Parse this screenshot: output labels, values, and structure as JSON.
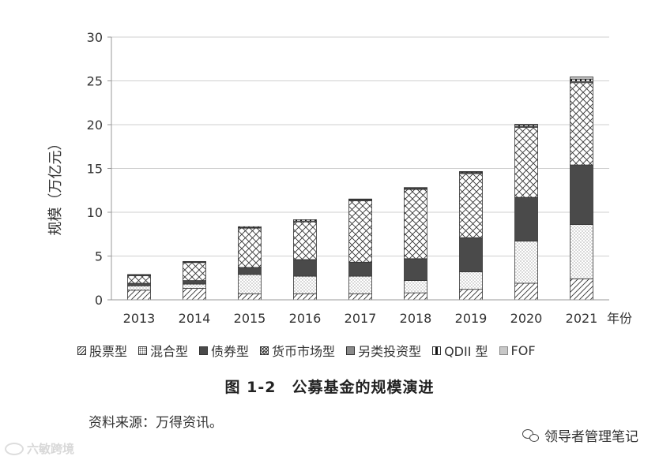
{
  "chart_data": {
    "type": "bar",
    "stacked": true,
    "title": "图 1-2　公募基金的规模演进",
    "ylabel": "规模（万亿元）",
    "xlabel": "年份",
    "ylim": [
      0,
      30
    ],
    "yticks": [
      0,
      5,
      10,
      15,
      20,
      25,
      30
    ],
    "grid": true,
    "legend_position": "bottom",
    "categories": [
      "2013",
      "2014",
      "2015",
      "2016",
      "2017",
      "2018",
      "2019",
      "2020",
      "2021"
    ],
    "series": [
      {
        "name": "股票型",
        "pattern": "hatch-diagonal",
        "values": [
          1.1,
          1.3,
          0.7,
          0.7,
          0.7,
          0.8,
          1.2,
          1.9,
          2.4
        ]
      },
      {
        "name": "混合型",
        "pattern": "dots",
        "values": [
          0.5,
          0.5,
          2.2,
          2.0,
          2.0,
          1.4,
          2.0,
          4.8,
          6.2
        ]
      },
      {
        "name": "债券型",
        "pattern": "solid-dark",
        "values": [
          0.3,
          0.4,
          0.8,
          1.9,
          1.6,
          2.5,
          3.9,
          5.0,
          6.8
        ]
      },
      {
        "name": "货币市场型",
        "pattern": "crosshatch",
        "values": [
          0.9,
          2.1,
          4.5,
          4.3,
          7.0,
          7.9,
          7.3,
          8.0,
          9.4
        ]
      },
      {
        "name": "另类投资型",
        "pattern": "solid-mid",
        "values": [
          0.02,
          0.02,
          0.05,
          0.1,
          0.1,
          0.1,
          0.1,
          0.1,
          0.15
        ]
      },
      {
        "name": "QDII 型",
        "pattern": "vertical-bar",
        "values": [
          0.07,
          0.06,
          0.1,
          0.15,
          0.1,
          0.1,
          0.1,
          0.15,
          0.25
        ]
      },
      {
        "name": "FOF",
        "pattern": "solid-light",
        "values": [
          0,
          0,
          0,
          0,
          0.01,
          0.02,
          0.05,
          0.1,
          0.25
        ]
      }
    ]
  },
  "colors": {
    "axis": "#9a9a9a",
    "grid": "#cfcfcf",
    "stroke": "#333333",
    "bond": "#4a4a4a",
    "alt": "#8a8a8a",
    "fof": "#c8c8c8"
  },
  "source_note": "资料来源：万得资讯。",
  "wechat_label": "领导者管理笔记",
  "watermark_text": "六敏跨境"
}
